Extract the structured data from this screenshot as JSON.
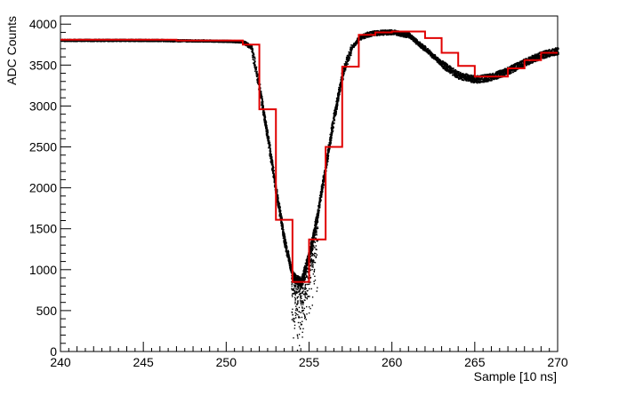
{
  "chart_data": {
    "type": "line",
    "title": "",
    "xlabel": "Sample [10 ns]",
    "ylabel": "ADC Counts",
    "xlim": [
      240,
      270
    ],
    "ylim": [
      0,
      4100
    ],
    "x_ticks": [
      "240",
      "245",
      "250",
      "255",
      "260",
      "265",
      "270"
    ],
    "y_ticks": [
      "0",
      "500",
      "1000",
      "1500",
      "2000",
      "2500",
      "3000",
      "3500",
      "4000"
    ],
    "grid": false,
    "legend": "none",
    "series": [
      {
        "style": "scatter",
        "color": "#000000",
        "x": [
          240,
          245,
          250,
          251,
          251.5,
          252,
          252.5,
          253,
          253.5,
          254,
          254.5,
          255,
          255.5,
          256,
          256.5,
          257,
          257.5,
          258,
          258.5,
          259,
          260,
          261,
          262,
          263,
          264,
          265,
          266,
          267,
          268,
          269,
          270
        ],
        "y": [
          3810,
          3810,
          3800,
          3790,
          3720,
          3200,
          2600,
          1950,
          1350,
          920,
          850,
          1200,
          1700,
          2300,
          2900,
          3400,
          3700,
          3840,
          3880,
          3900,
          3910,
          3870,
          3700,
          3520,
          3380,
          3330,
          3360,
          3440,
          3540,
          3630,
          3680
        ]
      },
      {
        "style": "step",
        "color": "#e00000",
        "x": [
          240,
          241,
          242,
          243,
          244,
          245,
          246,
          247,
          248,
          249,
          250,
          251,
          252,
          253,
          254,
          255,
          256,
          257,
          258,
          259,
          260,
          261,
          262,
          263,
          264,
          265,
          266,
          267,
          268,
          269
        ],
        "y": [
          3810,
          3810,
          3810,
          3810,
          3810,
          3810,
          3810,
          3800,
          3800,
          3800,
          3800,
          3750,
          2960,
          1610,
          850,
          1370,
          2500,
          3480,
          3870,
          3900,
          3910,
          3910,
          3830,
          3650,
          3490,
          3360,
          3360,
          3460,
          3560,
          3650
        ]
      }
    ]
  }
}
